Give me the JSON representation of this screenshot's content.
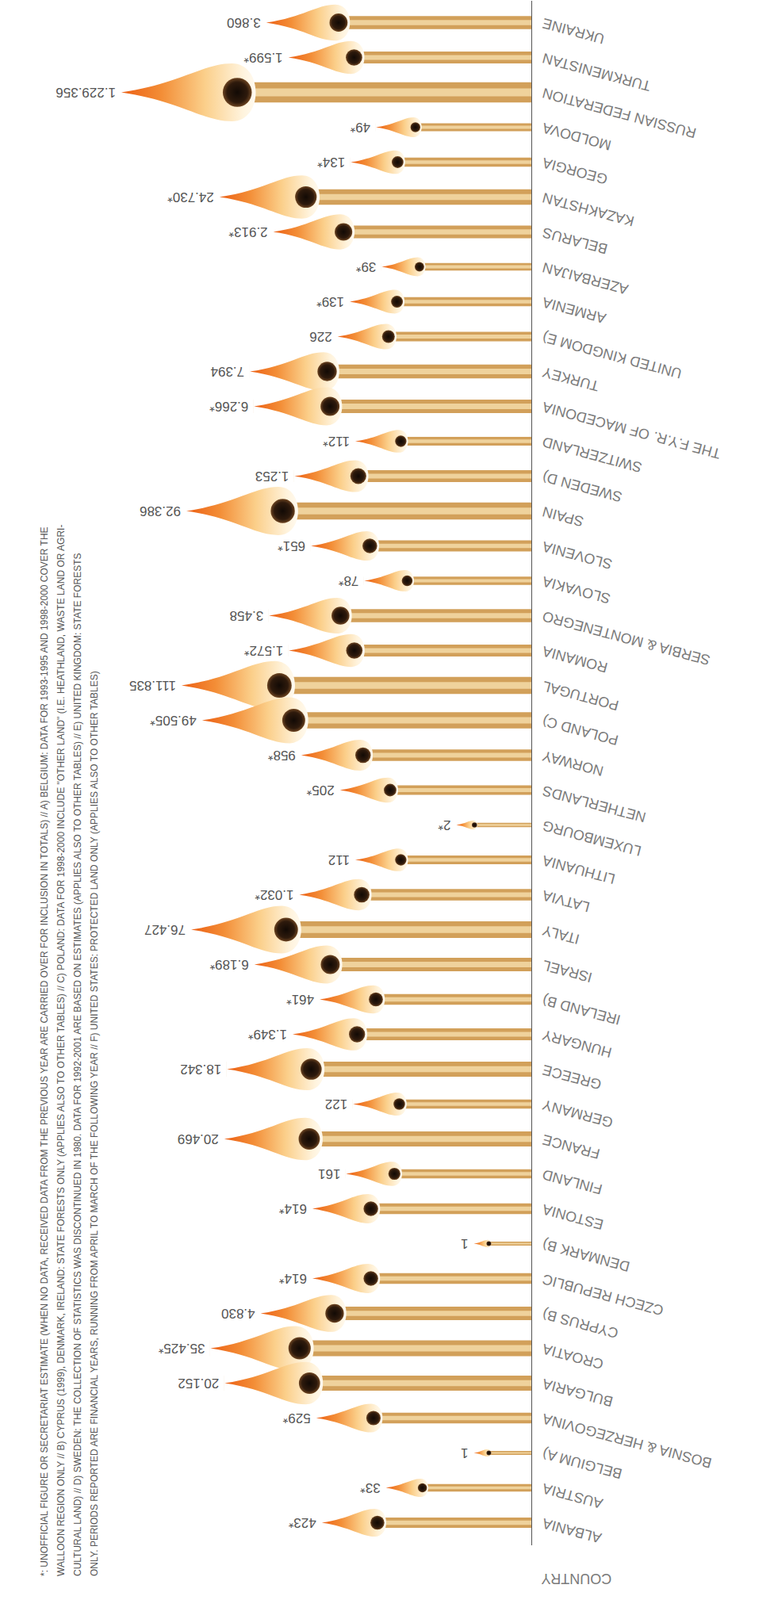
{
  "chart_data": {
    "type": "bar",
    "orientation": "horizontal",
    "ylabel": "COUNTRY",
    "categories": [
      "ALBANIA",
      "AUSTRIA",
      "BELGIUM A)",
      "BOSNIA & HERZEGOVINA",
      "BULGARIA",
      "CROATIA",
      "CYPRUS B)",
      "CZECH REPUBLIC",
      "DENMARK B)",
      "ESTONIA",
      "FINLAND",
      "FRANCE",
      "GERMANY",
      "GREECE",
      "HUNGARY",
      "IRELAND B)",
      "ISRAEL",
      "ITALY",
      "LATVIA",
      "LITHUANIA",
      "LUXEMBOURG",
      "NETHERLANDS",
      "NORWAY",
      "POLAND C)",
      "PORTUGAL",
      "ROMANIA",
      "SERBIA & MONTENEGRO",
      "SLOVAKIA",
      "SLOVENIA",
      "SPAIN",
      "SWEDEN D)",
      "SWITZERLAND",
      "THE F.Y.R. OF MACEDONIA",
      "TURKEY",
      "UNITED KINGDOM E)",
      "ARMENIA",
      "AZERBAIJAN",
      "BELARUS",
      "KAZAKHSTAN",
      "GEORGIA",
      "MOLDOVA",
      "RUSSIAN FEDERATION",
      "TURKMENISTAN",
      "UKRAINE"
    ],
    "values": [
      423,
      33,
      1,
      529,
      20152,
      35425,
      4830,
      614,
      1,
      614,
      161,
      20469,
      122,
      18342,
      1349,
      461,
      6189,
      76427,
      1032,
      112,
      2,
      205,
      958,
      49505,
      111835,
      1572,
      3458,
      78,
      651,
      92386,
      1253,
      112,
      6266,
      7394,
      226,
      139,
      39,
      2913,
      24730,
      134,
      49,
      1229356,
      1599,
      3860
    ],
    "value_labels": [
      "423*",
      "33*",
      "1",
      "529*",
      "20.152",
      "35.425*",
      "4.830",
      "614*",
      "1",
      "614*",
      "161",
      "20.469",
      "122",
      "18.342",
      "1.349*",
      "461*",
      "6.189*",
      "76.427",
      "1.032*",
      "112",
      "2*",
      "205*",
      "958*",
      "49.505*",
      "111.835",
      "1.572*",
      "3.458",
      "78*",
      "651*",
      "92.386",
      "1.253",
      "112*",
      "6.266*",
      "7.394",
      "226",
      "139*",
      "39*",
      "2.913*",
      "24.730*",
      "134*",
      "49*",
      "1.229.356",
      "1.599*",
      "3.860"
    ],
    "data_labels": true,
    "log": true,
    "xlim": [
      0.1,
      2000000
    ],
    "tick_labels": false,
    "color": "#d2a05a",
    "annotations": [
      "*: UNOFFICIAL FIGURE OR SECRETARIAT ESTIMATE (WHEN NO DATA, RECEIVED DATA FROM THE PREVIOUS YEAR ARE CARRIED OVER FOR INCLUSION IN TOTALS) // A) BELGIUM: DATA FOR 1993-1995 AND 1998-2000 COVER THE",
      "WALLOON REGION ONLY // B) CYPRUS (1999), DENMARK, IRELAND: STATE FORESTS ONLY (APPLIES ALSO TO OTHER TABLES) // C) POLAND: DATA FOR 1998-2000 INCLUDE \"OTHER LAND\" (I.E. HEATHLAND, WASTE LAND OR AGRI-",
      "CULTURAL LAND) // D) SWEDEN: THE COLLECTION OF STATISTICS WAS DISCONTINUED IN 1980. DATA FOR 1992-2001 ARE BASED ON ESTIMATES (APPLIES ALSO TO OTHER TABLES) // E) UNITED KINGDOM: STATE FORESTS",
      "ONLY. PERIODS REPORTED ARE FINANCIAL YEARS, RUNNING FROM APRIL TO MARCH OF THE FOLLOWING YEAR // F) UNITED STATES: PROTECTED LAND ONLY (APPLIES ALSO TO OTHER TABLES)"
    ]
  }
}
